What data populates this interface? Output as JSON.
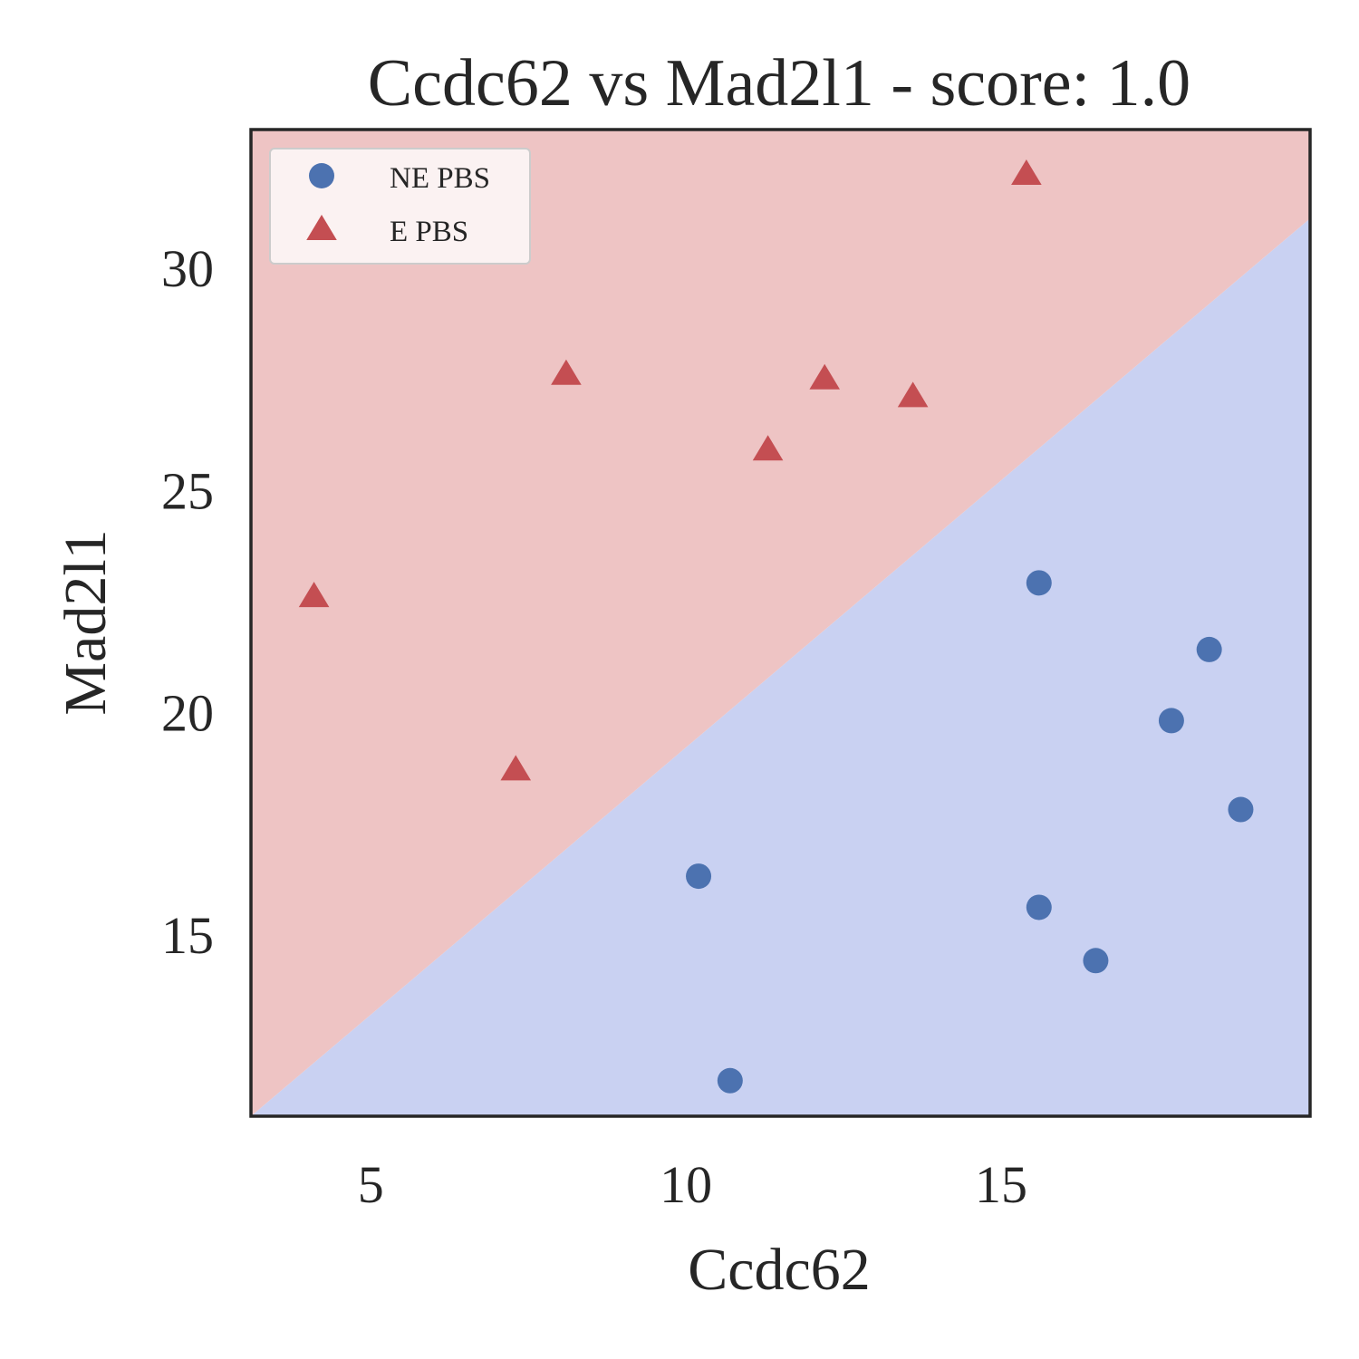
{
  "chart_data": {
    "type": "scatter",
    "title": "Ccdc62 vs Mad2l1 - score: 1.0",
    "xlabel": "Ccdc62",
    "ylabel": "Mad2l1",
    "xlim": [
      3.1,
      19.9
    ],
    "ylim": [
      10.9,
      33.1
    ],
    "xticks": [
      5,
      10,
      15
    ],
    "yticks": [
      15,
      20,
      25,
      30
    ],
    "grid": false,
    "legend": {
      "position": "top-left"
    },
    "background_colors": {
      "upper_region": "#eec4c4",
      "lower_region": "#c9d1f2"
    },
    "decision_boundary": {
      "from": [
        3.1,
        10.9
      ],
      "to": [
        19.9,
        31.1
      ]
    },
    "series": [
      {
        "name": "NE PBS",
        "marker": "circle",
        "color": "#4c72b0",
        "points": [
          {
            "x": 15.6,
            "y": 22.9
          },
          {
            "x": 18.3,
            "y": 21.4
          },
          {
            "x": 17.7,
            "y": 19.8
          },
          {
            "x": 18.8,
            "y": 17.8
          },
          {
            "x": 10.2,
            "y": 16.3
          },
          {
            "x": 15.6,
            "y": 15.6
          },
          {
            "x": 16.5,
            "y": 14.4
          },
          {
            "x": 10.7,
            "y": 11.7
          }
        ]
      },
      {
        "name": "E PBS",
        "marker": "triangle",
        "color": "#c44e52",
        "points": [
          {
            "x": 15.4,
            "y": 32.1
          },
          {
            "x": 8.1,
            "y": 27.6
          },
          {
            "x": 12.2,
            "y": 27.5
          },
          {
            "x": 13.6,
            "y": 27.1
          },
          {
            "x": 11.3,
            "y": 25.9
          },
          {
            "x": 4.1,
            "y": 22.6
          },
          {
            "x": 7.3,
            "y": 18.7
          }
        ]
      }
    ]
  }
}
